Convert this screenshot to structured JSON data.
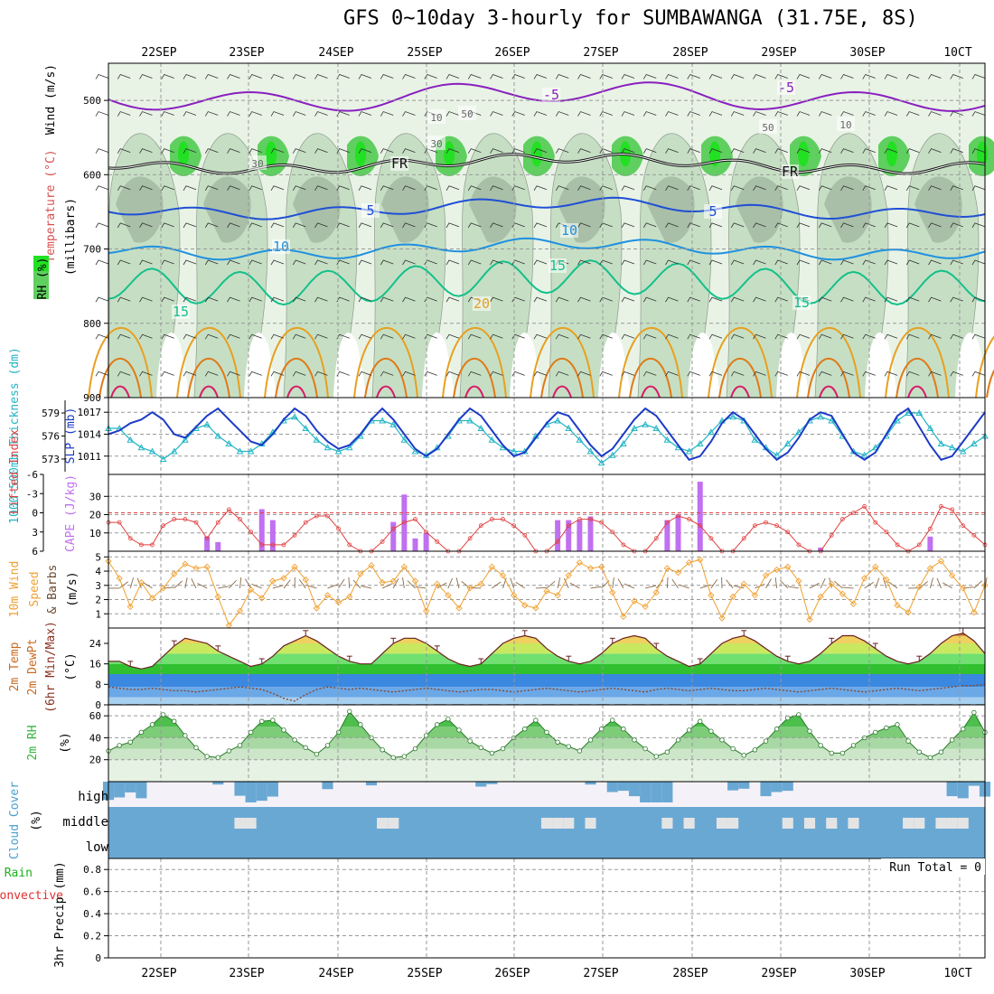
{
  "title": "GFS 0~10day 3-hourly for SUMBAWANGA (31.75E, 8S)",
  "colors": {
    "rh_light": "#e8f3e6",
    "rh_mid": "#c6dfc4",
    "rh_dark": "#a9bfa8",
    "rh_green": "#5fcf5f",
    "rh_bright": "#22e022",
    "wind_purple": "#8a1fbf",
    "frz": "#111111",
    "t5": "#1f4fd6",
    "t10": "#1f90e0",
    "t15": "#13c08a",
    "t20": "#e8a020",
    "t25": "#e07a18",
    "t30": "#d81f6a",
    "thick": "#22b5c5",
    "slp": "#1c3ac8",
    "li": "#e04040",
    "cape": "#c070f0",
    "wind10": "#f0a030",
    "barb": "#8a6a48",
    "cloud": "#6aa8d4",
    "cloud_bg": "#f4f2f8",
    "rh2m": "#31b53a"
  },
  "chart_data": [
    {
      "id": "upper-air",
      "type": "contour",
      "ylabel_parts": [
        "Wind (m/s)",
        "Temperature (°C)",
        "RH (%)"
      ],
      "axis_label": "(millibars)",
      "yticks": [
        500,
        600,
        700,
        800,
        900
      ],
      "ylim": [
        450,
        900
      ],
      "contour_labels": [
        "-5",
        "-5",
        "FR",
        "FR",
        "5",
        "5",
        "10",
        "10",
        "15",
        "15",
        "15",
        "20",
        "10",
        "50",
        "30",
        "50",
        "30",
        "10"
      ]
    },
    {
      "id": "thickness-slp",
      "type": "line",
      "ylabel_left": "1000-500mb Thickness (dm)",
      "ylabel_right": "SLP (mb)",
      "left_ticks": [
        "579",
        "576",
        "573"
      ],
      "right_ticks": [
        "1017",
        "1014",
        "1011"
      ],
      "left_range": [
        571,
        581
      ],
      "right_range": [
        1008.5,
        1019
      ],
      "series": [
        {
          "name": "Thickness",
          "values": [
            577,
            577,
            575.5,
            574.5,
            574,
            573,
            574,
            575.5,
            577,
            577.5,
            576,
            575,
            574,
            574,
            575,
            576.5,
            578,
            578.5,
            577,
            575.5,
            574.5,
            574,
            574.5,
            576,
            578,
            578,
            577.5,
            575.5,
            574,
            573.5,
            574.5,
            576,
            578,
            578,
            577,
            575.5,
            574.5,
            574,
            574,
            576,
            577.5,
            578,
            577,
            575.5,
            574,
            572.5,
            573.5,
            575,
            577,
            577.5,
            577,
            575.5,
            574.5,
            574,
            575,
            576.5,
            578,
            578.5,
            578,
            575.5,
            574.5,
            573.5,
            575,
            576.5,
            578,
            578.5,
            578,
            576,
            574,
            573.5,
            574.5,
            576,
            578,
            579,
            579,
            577,
            575,
            574.5,
            574,
            575,
            576
          ]
        },
        {
          "name": "SLP",
          "values": [
            1014,
            1014.5,
            1015.5,
            1016,
            1017,
            1016,
            1014,
            1013.5,
            1015,
            1016.5,
            1017.5,
            1016,
            1014.5,
            1013,
            1012.5,
            1014,
            1016,
            1017.5,
            1016.5,
            1014.5,
            1013,
            1012,
            1012.5,
            1014,
            1016,
            1017.5,
            1016,
            1014,
            1012,
            1011,
            1012,
            1014,
            1016,
            1017.5,
            1016.5,
            1014.5,
            1012.5,
            1011,
            1011.5,
            1013.5,
            1015.5,
            1017,
            1016.5,
            1014.5,
            1012.5,
            1011,
            1012,
            1014,
            1016,
            1017.5,
            1016.5,
            1014.5,
            1012.5,
            1010.5,
            1011,
            1013,
            1015.5,
            1017,
            1016,
            1014,
            1012,
            1010.5,
            1011.5,
            1013.5,
            1016,
            1017,
            1016.5,
            1014,
            1011.5,
            1010.5,
            1011.5,
            1014,
            1016.5,
            1017.5,
            1015,
            1012.5,
            1010.5,
            1011,
            1013,
            1015,
            1017
          ]
        }
      ]
    },
    {
      "id": "li-cape",
      "type": "bar+line",
      "ylabel_left": "Lifted Index",
      "ylabel_right": "CAPE (J/kg)",
      "li_ticks": [
        "-6",
        "-3",
        "0",
        "3",
        "6"
      ],
      "cape_ticks": [
        "30",
        "20",
        "10"
      ],
      "li_range": [
        -6,
        6
      ],
      "cape_range": [
        0,
        42
      ],
      "li_values": [
        1.5,
        1.5,
        4,
        5,
        5,
        2,
        1,
        1,
        1.5,
        4,
        1.5,
        -0.5,
        1,
        3,
        5,
        5,
        5,
        3.5,
        1.5,
        0.5,
        0.5,
        2.5,
        5,
        6,
        6,
        4.5,
        2.5,
        1.5,
        1,
        3,
        4.5,
        6,
        6,
        4,
        2,
        1,
        1,
        2,
        3.5,
        6,
        6,
        4.5,
        2,
        1,
        1,
        1.5,
        3,
        5,
        6,
        6,
        4,
        1.5,
        0.5,
        1,
        2,
        4,
        6,
        6,
        4,
        2,
        1.5,
        2,
        3,
        5,
        6,
        6,
        3.5,
        1,
        0,
        -1,
        1.5,
        3,
        5,
        6,
        5,
        2.5,
        -1,
        -0.5,
        2,
        3.5,
        5
      ],
      "cape_values": [
        0,
        0,
        0,
        0,
        0,
        0,
        0,
        0,
        0,
        8,
        5,
        0,
        0,
        0,
        23,
        17,
        0,
        0,
        0,
        0,
        0,
        0,
        0,
        0,
        0,
        0,
        16,
        31,
        7,
        10,
        0,
        0,
        0,
        0,
        0,
        0,
        0,
        0,
        0,
        0,
        0,
        17,
        17,
        17,
        19,
        0,
        0,
        0,
        0,
        0,
        0,
        17,
        20,
        0,
        38,
        0,
        0,
        0,
        0,
        0,
        0,
        0,
        0,
        0,
        0,
        2,
        0,
        0,
        0,
        0,
        0,
        0,
        0,
        0,
        0,
        8,
        0,
        0,
        0,
        0,
        0
      ]
    },
    {
      "id": "wind10m",
      "type": "line",
      "ylabel_parts": [
        "10m Wind",
        "Speed",
        "& Barbs"
      ],
      "unit": "(m/s)",
      "yticks": [
        "5",
        "4",
        "3",
        "2",
        "1"
      ],
      "ylim": [
        0,
        5.4
      ],
      "values": [
        4.7,
        3.5,
        1.5,
        3.2,
        2.1,
        2.8,
        3.8,
        4.5,
        4.2,
        4.3,
        2.2,
        0.2,
        1.2,
        2.7,
        2.1,
        3.3,
        3.5,
        4.3,
        3.4,
        1.4,
        2.3,
        1.8,
        2.2,
        3.8,
        4.4,
        3.2,
        3.3,
        4.3,
        3.3,
        1.2,
        3.1,
        2.3,
        1.4,
        2.8,
        3.1,
        4.3,
        3.7,
        2.3,
        1.6,
        1.4,
        2.6,
        2.3,
        3.7,
        4.6,
        4.2,
        4.3,
        2.5,
        0.8,
        1.9,
        1.5,
        2.5,
        4.2,
        3.9,
        4.6,
        4.8,
        2.3,
        0.7,
        2.2,
        3.1,
        2.3,
        3.7,
        4.1,
        4.3,
        3.3,
        0.6,
        2.2,
        3.1,
        2.4,
        1.7,
        3.5,
        4.3,
        3.4,
        1.6,
        1.1,
        2.9,
        4.2,
        4.7,
        3.7,
        2.8,
        1.1,
        3
      ]
    },
    {
      "id": "temp2m",
      "type": "area",
      "ylabel_parts": [
        "2m Temp",
        "2m DewPt",
        "(6hr Min/Max)"
      ],
      "unit": "(°C)",
      "yticks": [
        "24",
        "16",
        "8",
        "0"
      ],
      "ylim": [
        0,
        30
      ],
      "temp": [
        17,
        17,
        15,
        14,
        15,
        19,
        23,
        26,
        25,
        24,
        21,
        19,
        17,
        15,
        16,
        19,
        23,
        25,
        27,
        25,
        22,
        19,
        17,
        16,
        16,
        20,
        24,
        26,
        26,
        24,
        21,
        18,
        16,
        15,
        16,
        20,
        24,
        26,
        27,
        26,
        22,
        19,
        17,
        16,
        17,
        20,
        24,
        26,
        27,
        26,
        22,
        19,
        17,
        15,
        16,
        20,
        24,
        26,
        27,
        25,
        22,
        19,
        17,
        16,
        17,
        20,
        24,
        27,
        27,
        25,
        22,
        19,
        17,
        16,
        17,
        20,
        24,
        27,
        28,
        25,
        20
      ],
      "dew": [
        7,
        6.5,
        6,
        6,
        6.5,
        6,
        5.5,
        5.5,
        5,
        5.5,
        6,
        6.5,
        7,
        6.5,
        6,
        4.5,
        2.5,
        1.5,
        4,
        6,
        7,
        6.5,
        6,
        6.5,
        6,
        5.5,
        5,
        5.5,
        6,
        6.5,
        6,
        5.5,
        5,
        5.5,
        6,
        6,
        5.5,
        5,
        5.5,
        6,
        6.5,
        6,
        5.5,
        5,
        5.5,
        6,
        6.5,
        6,
        5.5,
        5,
        6,
        6.5,
        6,
        5.5,
        6,
        6.5,
        6,
        5.5,
        5.5,
        6,
        6.5,
        6,
        5.5,
        5,
        5.5,
        6,
        6.5,
        6,
        5.5,
        5,
        5.5,
        6,
        6.5,
        6,
        5.5,
        6,
        6.5,
        7,
        7.5,
        7.5,
        8
      ]
    },
    {
      "id": "rh2m",
      "type": "area",
      "ylabel": "2m RH",
      "unit": "(%)",
      "yticks": [
        "60",
        "40",
        "20"
      ],
      "ylim": [
        0,
        70
      ],
      "values": [
        28,
        33,
        36,
        45,
        52,
        61,
        55,
        42,
        31,
        23,
        22,
        28,
        33,
        45,
        55,
        56,
        47,
        38,
        31,
        25,
        33,
        45,
        64,
        52,
        40,
        29,
        22,
        23,
        30,
        42,
        52,
        57,
        47,
        37,
        31,
        26,
        30,
        40,
        48,
        56,
        45,
        36,
        32,
        28,
        38,
        48,
        56,
        48,
        38,
        30,
        23,
        27,
        38,
        47,
        55,
        46,
        38,
        30,
        24,
        29,
        37,
        48,
        58,
        61,
        46,
        33,
        26,
        26,
        33,
        40,
        45,
        49,
        52,
        37,
        27,
        22,
        27,
        38,
        48,
        63,
        45
      ]
    },
    {
      "id": "cloud",
      "type": "area",
      "ylabel": "Cloud Cover",
      "unit": "(%)",
      "levels": [
        "high",
        "middle",
        "low"
      ],
      "high": [
        88,
        76,
        52,
        80,
        0,
        0,
        0,
        0,
        0,
        0,
        14,
        0,
        68,
        100,
        92,
        72,
        0,
        0,
        0,
        0,
        36,
        0,
        0,
        0,
        18,
        0,
        0,
        0,
        0,
        0,
        0,
        0,
        0,
        0,
        24,
        12,
        0,
        0,
        0,
        0,
        0,
        0,
        0,
        0,
        14,
        0,
        50,
        44,
        70,
        100,
        100,
        100,
        0,
        0,
        0,
        0,
        0,
        42,
        34,
        0,
        70,
        50,
        44,
        0,
        0,
        0,
        0,
        0,
        0,
        0,
        0,
        0,
        0,
        0,
        0,
        0,
        0,
        70,
        80,
        20,
        72
      ],
      "middle": [
        0,
        0,
        0,
        0,
        0,
        0,
        0,
        0,
        0,
        0,
        0,
        0,
        0,
        0,
        0,
        0,
        0,
        0,
        0,
        0,
        0,
        0,
        0,
        0,
        0,
        0,
        0,
        0,
        0,
        0,
        0,
        0,
        0,
        0,
        0,
        0,
        0,
        0,
        0,
        0,
        0,
        0,
        0,
        0,
        0,
        0,
        0,
        0,
        0,
        0,
        0,
        0,
        0,
        0,
        0,
        0,
        0,
        0,
        0,
        0,
        0,
        0,
        0,
        0,
        0,
        0,
        0,
        0,
        0,
        0,
        0,
        0,
        0,
        0,
        0,
        0,
        0,
        0,
        0,
        0,
        0
      ],
      "gaps": [
        0,
        0,
        0,
        0,
        0,
        0,
        0,
        0,
        0,
        0,
        0,
        0,
        0,
        0,
        0,
        0,
        0,
        0,
        0,
        0,
        0,
        0,
        0,
        0,
        0,
        0,
        0,
        0,
        0,
        0,
        0,
        0,
        0,
        0,
        0,
        0,
        0,
        0,
        0,
        0,
        0,
        0,
        0,
        0,
        0,
        0,
        0,
        0,
        0,
        0,
        0,
        0,
        0,
        0,
        0,
        0,
        0,
        0,
        0,
        0,
        0,
        0,
        0,
        0,
        0,
        0,
        0,
        0,
        0,
        0,
        0,
        0,
        0,
        0,
        0,
        0,
        0,
        0,
        0,
        0,
        0
      ]
    },
    {
      "id": "precip",
      "type": "bar",
      "ylabel": "3hr Precip (mm)",
      "legend": [
        "Total / Rain",
        "Convective"
      ],
      "yticks": [
        "0.8",
        "0.6",
        "0.4",
        "0.2",
        "0"
      ],
      "ylim": [
        0,
        0.9
      ],
      "annotation": "Run Total = 0",
      "values": []
    }
  ],
  "xaxis": {
    "ticks": [
      "22SEP",
      "23SEP",
      "24SEP",
      "25SEP",
      "26SEP",
      "27SEP",
      "28SEP",
      "29SEP",
      "30SEP",
      "1OCT"
    ],
    "tick_display": [
      "22SEP",
      "23SEP",
      "24SEP",
      "25SEP",
      "26SEP",
      "27SEP",
      "28SEP",
      "29SEP",
      "30SEP",
      "10CT"
    ]
  }
}
